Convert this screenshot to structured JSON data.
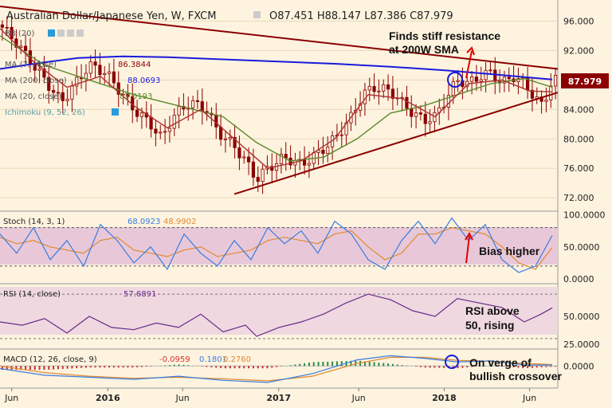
{
  "header": {
    "title": "Australian Dollar/Japanese Yen, W, FXCM",
    "ohlc": "O87.451  H88.147  L87.386  C87.979"
  },
  "overlays": {
    "bb": "BB (20)",
    "ma_close": "MA (7, close)",
    "ma_close_value": "86.3844",
    "ma200": "MA (200, close)",
    "ma200_value": "88.0693",
    "ma20": "MA (20, close)",
    "ma20_value": "87.0193",
    "ichimoku": "Ichimoku (9, 52, 26)"
  },
  "price_badge": "87.979",
  "annotations": {
    "resistance_line1": "Finds stiff resistance",
    "resistance_line2": "at 200W SMA",
    "bias": "Bias higher",
    "rsi_line1": "RSI above",
    "rsi_line2": "50, rising",
    "macd_line1": "On verge of",
    "macd_line2": "bullish crossover"
  },
  "stoch": {
    "label": "Stoch (14, 3, 1)",
    "k": "68.0923",
    "d": "48.9902"
  },
  "rsi": {
    "label": "RSI (14, close)",
    "value": "57.6891"
  },
  "macd": {
    "label": "MACD (12, 26, close, 9)",
    "hist": "-0.0959",
    "macd": "0.1801",
    "signal": "0.2760"
  },
  "colors": {
    "background": "#fdf3df",
    "candle": "#8b0000",
    "sma200": "#1a1adb",
    "sma20": "#5a8a2a",
    "sma7": "#b03030",
    "trendline": "#8b0000",
    "stoch_k": "#3a7de0",
    "stoch_d": "#e08a30",
    "rsi": "#6a2a8a",
    "band": "#e8c8d8",
    "arrow": "#e00000",
    "circle": "#1a1adb"
  },
  "chart_data": [
    {
      "type": "candlestick",
      "title": "Australian Dollar/Japanese Yen, W, FXCM",
      "x_ticks": [
        "Jun",
        "2016",
        "Jun",
        "2017",
        "Jun",
        "2018",
        "Jun"
      ],
      "y_ticks": [
        72,
        76,
        80,
        84,
        88,
        92,
        96
      ],
      "y_tick_labels": [
        "72.000",
        "76.000",
        "80.000",
        "84.000",
        "88.000",
        "92.000",
        "96.000"
      ],
      "ylim": [
        70.5,
        98
      ],
      "last_close": 87.979,
      "close_path": [
        [
          0,
          95.5
        ],
        [
          3,
          93
        ],
        [
          6,
          90
        ],
        [
          9,
          87
        ],
        [
          11,
          85
        ],
        [
          13,
          87
        ],
        [
          16,
          90
        ],
        [
          19,
          89
        ],
        [
          22,
          86
        ],
        [
          24,
          84
        ],
        [
          27,
          82
        ],
        [
          29,
          80
        ],
        [
          31,
          83
        ],
        [
          34,
          85
        ],
        [
          37,
          84
        ],
        [
          39,
          81
        ],
        [
          42,
          79
        ],
        [
          44,
          77
        ],
        [
          46,
          74.5
        ],
        [
          48,
          76
        ],
        [
          51,
          77.5
        ],
        [
          54,
          76.5
        ],
        [
          57,
          78
        ],
        [
          60,
          80
        ],
        [
          63,
          83
        ],
        [
          65,
          86
        ],
        [
          67,
          87
        ],
        [
          70,
          86.5
        ],
        [
          72,
          85
        ],
        [
          74,
          83.5
        ],
        [
          76,
          82.5
        ],
        [
          78,
          83
        ],
        [
          80,
          85.5
        ],
        [
          82,
          88
        ],
        [
          84,
          87.5
        ],
        [
          86,
          88.5
        ],
        [
          88,
          89
        ],
        [
          90,
          87.5
        ],
        [
          92,
          88.5
        ],
        [
          94,
          87.5
        ],
        [
          96,
          85.5
        ],
        [
          97,
          84.5
        ],
        [
          98,
          86
        ],
        [
          99,
          87.98
        ]
      ],
      "series": [
        {
          "name": "MA (200, close)",
          "points": [
            [
              0,
              89.5
            ],
            [
              7,
              90.3
            ],
            [
              14,
              91.0
            ],
            [
              22,
              91.2
            ],
            [
              30,
              91.1
            ],
            [
              40,
              90.8
            ],
            [
              50,
              90.5
            ],
            [
              60,
              90.2
            ],
            [
              70,
              89.8
            ],
            [
              80,
              89.3
            ],
            [
              88,
              88.8
            ],
            [
              94,
              88.4
            ],
            [
              99,
              88.07
            ]
          ]
        },
        {
          "name": "MA (20, close)",
          "points": [
            [
              0,
              94
            ],
            [
              8,
              90
            ],
            [
              16,
              88
            ],
            [
              24,
              86
            ],
            [
              32,
              84.5
            ],
            [
              40,
              83
            ],
            [
              46,
              79.5
            ],
            [
              52,
              77
            ],
            [
              58,
              77.5
            ],
            [
              64,
              80
            ],
            [
              70,
              83.5
            ],
            [
              76,
              84.5
            ],
            [
              82,
              86
            ],
            [
              88,
              87.5
            ],
            [
              94,
              88.2
            ],
            [
              99,
              87.02
            ]
          ]
        },
        {
          "name": "MA (7, close)",
          "points": [
            [
              0,
              95
            ],
            [
              6,
              90.5
            ],
            [
              12,
              87
            ],
            [
              18,
              88.5
            ],
            [
              24,
              84.5
            ],
            [
              30,
              81.5
            ],
            [
              36,
              84
            ],
            [
              42,
              80
            ],
            [
              48,
              76
            ],
            [
              54,
              77
            ],
            [
              60,
              80
            ],
            [
              66,
              86
            ],
            [
              72,
              85.5
            ],
            [
              78,
              83
            ],
            [
              84,
              87.5
            ],
            [
              90,
              88
            ],
            [
              95,
              86.5
            ],
            [
              99,
              86.38
            ]
          ]
        }
      ],
      "trendlines": [
        {
          "name": "resistance",
          "from": [
            0,
            98
          ],
          "to": [
            100,
            89.5
          ]
        },
        {
          "name": "support",
          "from": [
            42,
            72.5
          ],
          "to": [
            100,
            86.3
          ]
        }
      ]
    },
    {
      "type": "line",
      "title": "Stoch (14, 3, 1)",
      "y_ticks": [
        0,
        50,
        100
      ],
      "y_tick_labels": [
        "0.0000",
        "50.0000",
        "100.0000"
      ],
      "ylim": [
        -5,
        102
      ],
      "bands": [
        20,
        80
      ],
      "series": [
        {
          "name": "%K",
          "points": [
            [
              0,
              70
            ],
            [
              3,
              40
            ],
            [
              6,
              80
            ],
            [
              9,
              30
            ],
            [
              12,
              60
            ],
            [
              15,
              20
            ],
            [
              18,
              85
            ],
            [
              21,
              60
            ],
            [
              24,
              25
            ],
            [
              27,
              50
            ],
            [
              30,
              15
            ],
            [
              33,
              70
            ],
            [
              36,
              40
            ],
            [
              39,
              20
            ],
            [
              42,
              60
            ],
            [
              45,
              30
            ],
            [
              48,
              80
            ],
            [
              51,
              55
            ],
            [
              54,
              75
            ],
            [
              57,
              40
            ],
            [
              60,
              90
            ],
            [
              63,
              70
            ],
            [
              66,
              30
            ],
            [
              69,
              15
            ],
            [
              72,
              60
            ],
            [
              75,
              90
            ],
            [
              78,
              55
            ],
            [
              81,
              95
            ],
            [
              84,
              60
            ],
            [
              87,
              85
            ],
            [
              90,
              30
            ],
            [
              93,
              10
            ],
            [
              96,
              20
            ],
            [
              99,
              68.09
            ]
          ]
        },
        {
          "name": "%D",
          "points": [
            [
              0,
              65
            ],
            [
              3,
              55
            ],
            [
              6,
              60
            ],
            [
              9,
              50
            ],
            [
              12,
              45
            ],
            [
              15,
              40
            ],
            [
              18,
              60
            ],
            [
              21,
              65
            ],
            [
              24,
              45
            ],
            [
              27,
              40
            ],
            [
              30,
              35
            ],
            [
              33,
              45
            ],
            [
              36,
              50
            ],
            [
              39,
              35
            ],
            [
              42,
              40
            ],
            [
              45,
              45
            ],
            [
              48,
              60
            ],
            [
              51,
              65
            ],
            [
              54,
              60
            ],
            [
              57,
              55
            ],
            [
              60,
              70
            ],
            [
              63,
              75
            ],
            [
              66,
              50
            ],
            [
              69,
              30
            ],
            [
              72,
              40
            ],
            [
              75,
              70
            ],
            [
              78,
              70
            ],
            [
              81,
              80
            ],
            [
              84,
              75
            ],
            [
              87,
              70
            ],
            [
              90,
              50
            ],
            [
              93,
              25
            ],
            [
              96,
              15
            ],
            [
              99,
              48.99
            ]
          ]
        }
      ]
    },
    {
      "type": "line",
      "title": "RSI (14, close)",
      "y_ticks": [
        25,
        50
      ],
      "y_tick_labels": [
        "25.0000",
        "50.0000"
      ],
      "ylim": [
        22,
        78
      ],
      "bands": [
        30,
        70
      ],
      "series": [
        {
          "name": "RSI",
          "points": [
            [
              0,
              45
            ],
            [
              4,
              42
            ],
            [
              8,
              48
            ],
            [
              12,
              35
            ],
            [
              16,
              50
            ],
            [
              20,
              40
            ],
            [
              24,
              38
            ],
            [
              28,
              44
            ],
            [
              32,
              40
            ],
            [
              36,
              52
            ],
            [
              40,
              36
            ],
            [
              44,
              42
            ],
            [
              46,
              32
            ],
            [
              50,
              40
            ],
            [
              54,
              45
            ],
            [
              58,
              52
            ],
            [
              62,
              62
            ],
            [
              66,
              70
            ],
            [
              70,
              65
            ],
            [
              74,
              55
            ],
            [
              78,
              50
            ],
            [
              82,
              66
            ],
            [
              86,
              62
            ],
            [
              90,
              58
            ],
            [
              94,
              45
            ],
            [
              97,
              52
            ],
            [
              99,
              57.69
            ]
          ]
        }
      ]
    },
    {
      "type": "line",
      "title": "MACD (12, 26, close, 9)",
      "y_ticks": [
        0
      ],
      "y_tick_labels": [
        "0.0000"
      ],
      "ylim": [
        -4,
        3
      ],
      "series": [
        {
          "name": "MACD",
          "points": [
            [
              0,
              -0.5
            ],
            [
              8,
              -1.8
            ],
            [
              16,
              -2.2
            ],
            [
              24,
              -2.6
            ],
            [
              32,
              -2.0
            ],
            [
              40,
              -2.8
            ],
            [
              48,
              -3.2
            ],
            [
              56,
              -1.5
            ],
            [
              64,
              1.2
            ],
            [
              70,
              2.0
            ],
            [
              76,
              1.5
            ],
            [
              82,
              0.8
            ],
            [
              88,
              1.0
            ],
            [
              94,
              0.2
            ],
            [
              99,
              0.18
            ]
          ]
        },
        {
          "name": "Signal",
          "points": [
            [
              0,
              0.0
            ],
            [
              8,
              -1.3
            ],
            [
              16,
              -2.0
            ],
            [
              24,
              -2.4
            ],
            [
              32,
              -2.2
            ],
            [
              40,
              -2.5
            ],
            [
              48,
              -2.9
            ],
            [
              56,
              -2.0
            ],
            [
              64,
              0.5
            ],
            [
              70,
              1.7
            ],
            [
              76,
              1.7
            ],
            [
              82,
              1.1
            ],
            [
              88,
              0.9
            ],
            [
              94,
              0.5
            ],
            [
              99,
              0.28
            ]
          ]
        }
      ]
    }
  ]
}
